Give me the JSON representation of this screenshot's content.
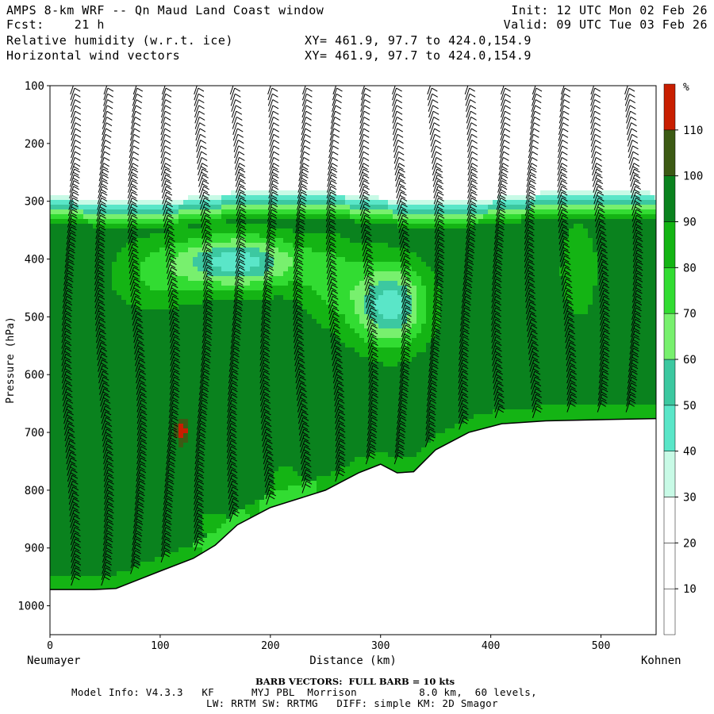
{
  "header": {
    "line1_left": "AMPS 8-km WRF -- Qn Maud Land Coast window",
    "line2_left": "Fcst:    21 h",
    "line3_left": "Relative humidity (w.r.t. ice)",
    "line4_left": "Horizontal wind vectors",
    "line1_right": "Init: 12 UTC Mon 02 Feb 26",
    "line2_right": "Valid: 09 UTC Tue 03 Feb 26",
    "line3_mid": "XY= 461.9, 97.7 to 424.0,154.9",
    "line4_mid": "XY= 461.9, 97.7 to 424.0,154.9"
  },
  "footer": {
    "barb_note": "BARB VECTORS:  FULL BARB = 10 kts",
    "model_info": "Model Info: V4.3.3   KF      MYJ PBL  Morrison          8.0 km,  60 levels,",
    "model_info2": "LW: RRTM SW: RRTMG   DIFF: simple KM: 2D Smagor"
  },
  "chart_data": {
    "type": "heatmap",
    "title": "Relative humidity (w.r.t. ice)",
    "xlabel": "Distance (km)",
    "ylabel": "Pressure (hPa)",
    "x_start_label": "Neumayer",
    "x_end_label": "Kohnen",
    "xlim": [
      0,
      550
    ],
    "ylim": [
      100,
      1050
    ],
    "x_ticks": [
      "0",
      "100",
      "200",
      "300",
      "400",
      "500"
    ],
    "x_tick_values": [
      0,
      100,
      200,
      300,
      400,
      500
    ],
    "y_ticks": [
      "100",
      "200",
      "300",
      "400",
      "500",
      "600",
      "700",
      "800",
      "900",
      "1000"
    ],
    "y_tick_values": [
      100,
      200,
      300,
      400,
      500,
      600,
      700,
      800,
      900,
      1000
    ],
    "colorbar": {
      "unit": "%",
      "labels": [
        "10",
        "20",
        "30",
        "40",
        "50",
        "60",
        "70",
        "80",
        "90",
        "100",
        "110"
      ],
      "bounds": [
        0,
        10,
        20,
        30,
        40,
        50,
        60,
        70,
        80,
        90,
        100,
        110,
        120
      ],
      "colors": [
        "#ffffff",
        "#ffffff",
        "#ffffff",
        "#c8fae6",
        "#5ae6c8",
        "#3cc8a0",
        "#78f06e",
        "#32dc32",
        "#14b414",
        "#0a821e",
        "#3c5a14",
        "#c81e00"
      ]
    },
    "terrain": [
      [
        0,
        972
      ],
      [
        20,
        972
      ],
      [
        40,
        972
      ],
      [
        60,
        970
      ],
      [
        80,
        955
      ],
      [
        100,
        940
      ],
      [
        130,
        918
      ],
      [
        150,
        895
      ],
      [
        170,
        860
      ],
      [
        200,
        830
      ],
      [
        250,
        800
      ],
      [
        280,
        770
      ],
      [
        300,
        755
      ],
      [
        315,
        770
      ],
      [
        330,
        768
      ],
      [
        350,
        730
      ],
      [
        380,
        700
      ],
      [
        410,
        685
      ],
      [
        450,
        680
      ],
      [
        500,
        678
      ],
      [
        550,
        676
      ]
    ],
    "rh_top_pressure": 290,
    "features": [
      {
        "label": "dry pocket",
        "x": 170,
        "p": 405,
        "rh": 50
      },
      {
        "label": "dry pocket",
        "x": 308,
        "p": 480,
        "rh": 50
      },
      {
        "label": "supersaturated spot",
        "x": 120,
        "p": 700,
        "rh": 115
      }
    ],
    "barb_columns_km": [
      15,
      45,
      75,
      105,
      135,
      165,
      195,
      225,
      255,
      285,
      315,
      345,
      375,
      405,
      435,
      465,
      495,
      525
    ]
  }
}
